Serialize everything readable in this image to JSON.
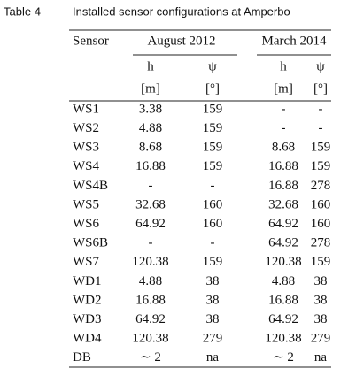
{
  "caption": {
    "label": "Table 4",
    "title": "Installed sensor configurations at Amperbo"
  },
  "table": {
    "header": [
      "Sensor",
      "August 2012",
      "March 2014"
    ],
    "subheader": [
      "h",
      "ψ",
      "h",
      "ψ"
    ],
    "units": [
      "[m]",
      "[°]",
      "[m]",
      "[°]"
    ],
    "rows": [
      [
        "WS1",
        "3.38",
        "159",
        "-",
        "-"
      ],
      [
        "WS2",
        "4.88",
        "159",
        "-",
        "-"
      ],
      [
        "WS3",
        "8.68",
        "159",
        "8.68",
        "159"
      ],
      [
        "WS4",
        "16.88",
        "159",
        "16.88",
        "159"
      ],
      [
        "WS4B",
        "-",
        "-",
        "16.88",
        "278"
      ],
      [
        "WS5",
        "32.68",
        "160",
        "32.68",
        "160"
      ],
      [
        "WS6",
        "64.92",
        "160",
        "64.92",
        "160"
      ],
      [
        "WS6B",
        "-",
        "-",
        "64.92",
        "278"
      ],
      [
        "WS7",
        "120.38",
        "159",
        "120.38",
        "159"
      ],
      [
        "WD1",
        "4.88",
        "38",
        "4.88",
        "38"
      ],
      [
        "WD2",
        "16.88",
        "38",
        "16.88",
        "38"
      ],
      [
        "WD3",
        "64.92",
        "38",
        "64.92",
        "38"
      ],
      [
        "WD4",
        "120.38",
        "279",
        "120.38",
        "279"
      ],
      [
        "DB",
        "∼ 2",
        "na",
        "∼ 2",
        "na"
      ]
    ]
  }
}
